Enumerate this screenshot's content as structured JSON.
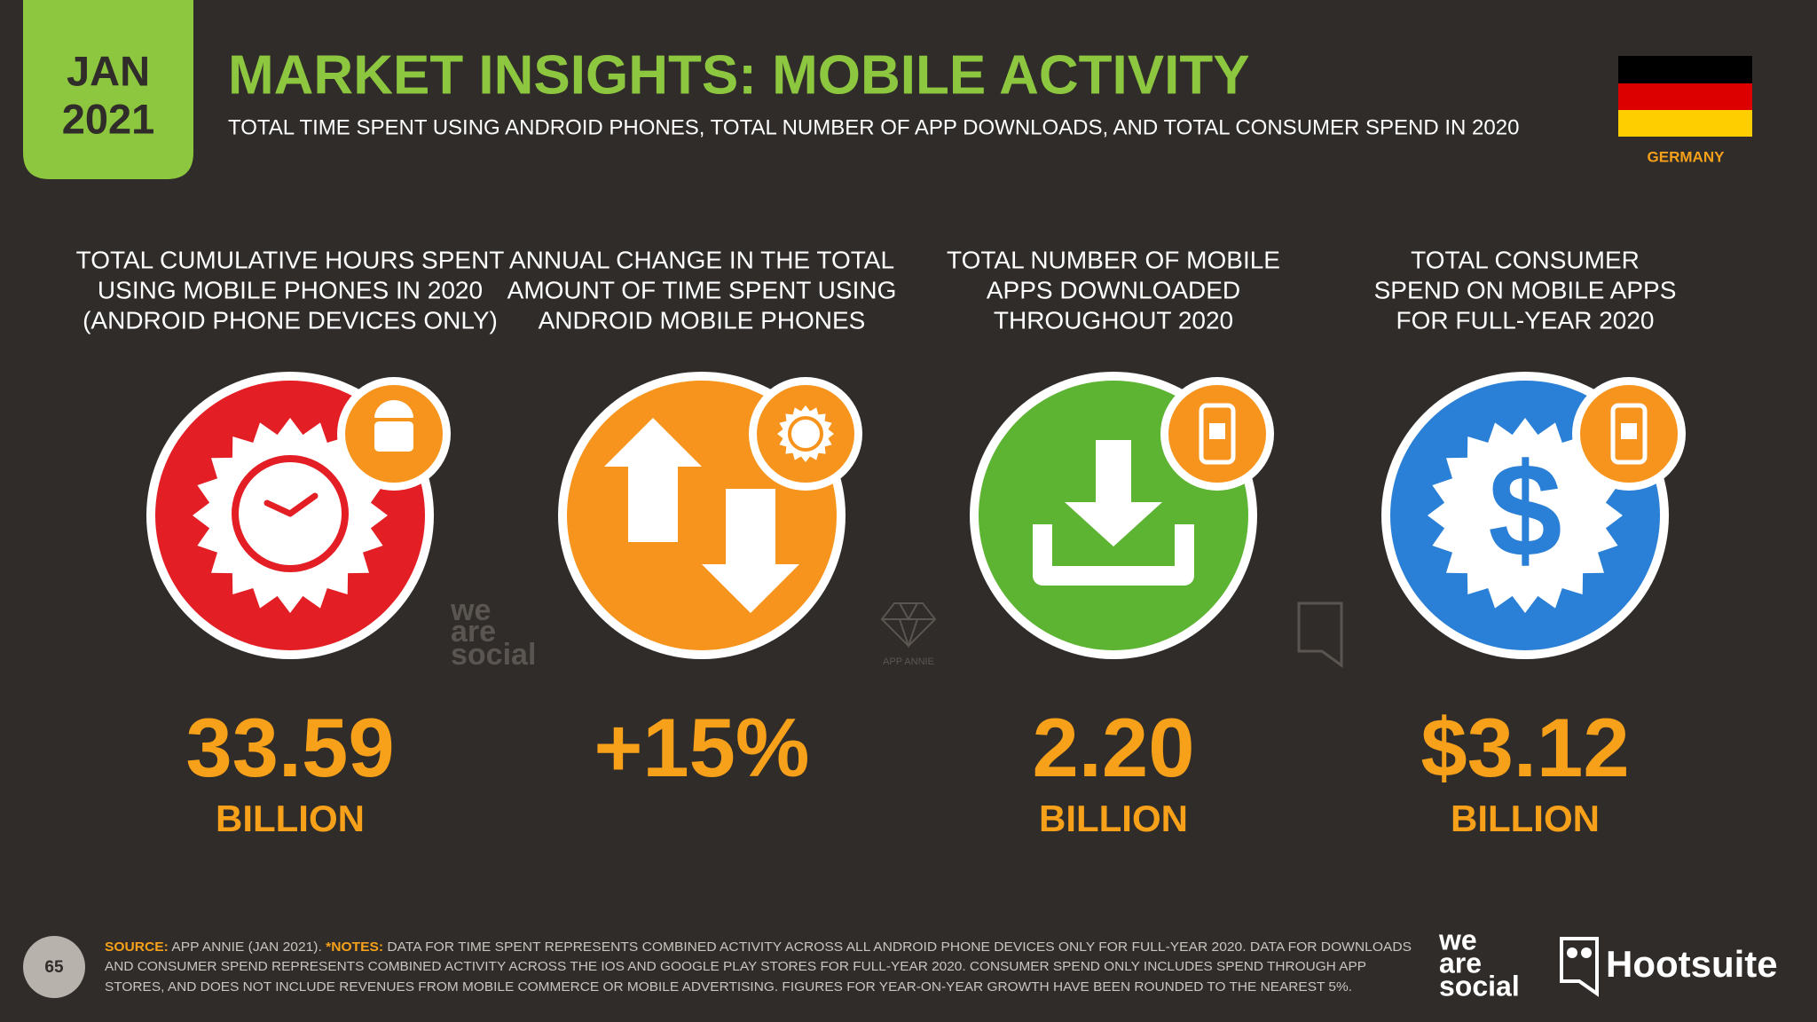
{
  "header": {
    "month": "JAN",
    "year": "2021",
    "title": "MARKET INSIGHTS: MOBILE ACTIVITY",
    "subtitle": "TOTAL TIME SPENT USING ANDROID PHONES, TOTAL NUMBER OF APP DOWNLOADS, AND TOTAL CONSUMER SPEND IN 2020",
    "country": "GERMANY"
  },
  "stats": [
    {
      "label_lines": [
        "TOTAL CUMULATIVE HOURS SPENT",
        "USING MOBILE PHONES IN 2020",
        "(ANDROID PHONE DEVICES ONLY)"
      ],
      "value": "33.59",
      "unit": "BILLION"
    },
    {
      "label_lines": [
        "ANNUAL CHANGE IN THE TOTAL",
        "AMOUNT OF TIME SPENT USING",
        "ANDROID MOBILE PHONES"
      ],
      "value": "+15%"
    },
    {
      "label_lines": [
        "TOTAL NUMBER OF MOBILE",
        "APPS DOWNLOADED",
        "THROUGHOUT 2020"
      ],
      "value": "2.20",
      "unit": "BILLION"
    },
    {
      "label_lines": [
        "TOTAL CONSUMER",
        "SPEND ON MOBILE APPS",
        "FOR FULL-YEAR 2020"
      ],
      "value": "$3.12",
      "unit": "BILLION"
    }
  ],
  "watermarks": {
    "we_are_social": [
      "we",
      "are",
      "social"
    ],
    "app_annie": "APP ANNIE"
  },
  "footer": {
    "page": "65",
    "source_label": "SOURCE:",
    "source": "APP ANNIE (JAN 2021).",
    "notes_label": "*NOTES:",
    "notes_lines": [
      "DATA FOR TIME SPENT REPRESENTS COMBINED ACTIVITY ACROSS ALL ANDROID PHONE DEVICES ONLY FOR FULL-YEAR 2020. DATA FOR DOWNLOADS",
      "AND CONSUMER SPEND REPRESENTS COMBINED ACTIVITY ACROSS THE IOS AND GOOGLE PLAY STORES FOR FULL-YEAR 2020. CONSUMER SPEND ONLY INCLUDES SPEND THROUGH APP",
      "STORES, AND DOES NOT INCLUDE REVENUES FROM MOBILE COMMERCE OR MOBILE ADVERTISING. FIGURES FOR YEAR-ON-YEAR GROWTH HAVE BEEN ROUNDED TO THE NEAREST 5%."
    ],
    "brand_we_are_social": [
      "we",
      "are",
      "social"
    ],
    "brand_hootsuite": "Hootsuite"
  }
}
